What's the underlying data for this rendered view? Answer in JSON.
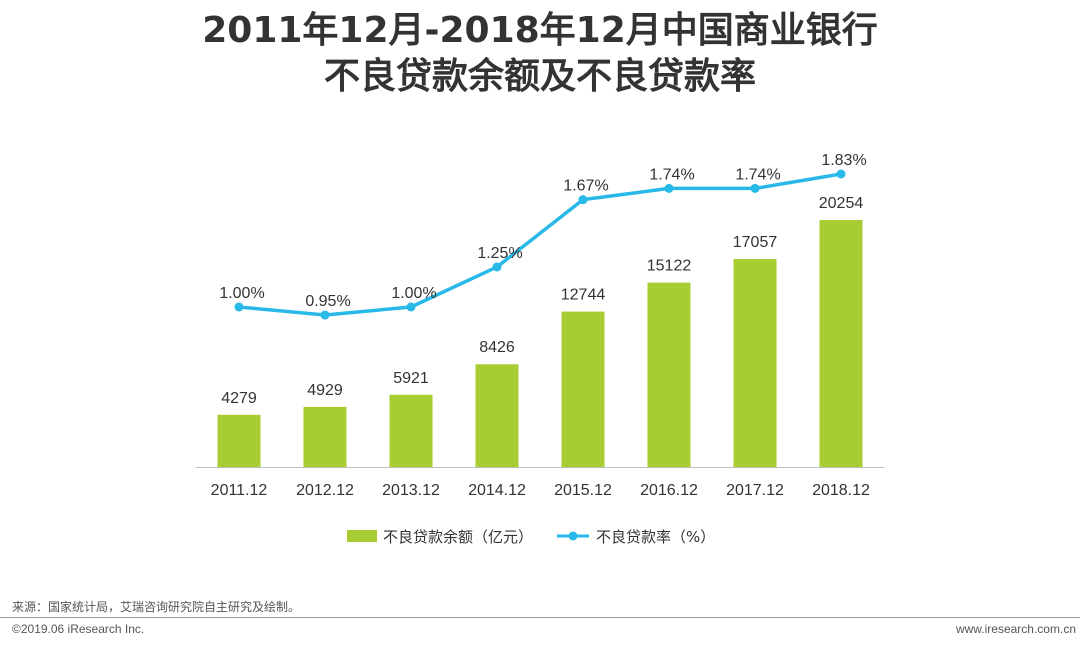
{
  "title": {
    "line1": "2011年12月-2018年12月中国商业银行",
    "line2": "不良贷款余额及不良贷款率"
  },
  "colors": {
    "bar": "#a8cd32",
    "line": "#29b9e8",
    "axis": "#bfbfbf",
    "text": "#333333"
  },
  "chart_data": {
    "type": "bar",
    "categories": [
      "2011.12",
      "2012.12",
      "2013.12",
      "2014.12",
      "2015.12",
      "2016.12",
      "2017.12",
      "2018.12"
    ],
    "series": [
      {
        "name": "不良贷款余额（亿元）",
        "type": "bar",
        "values": [
          4279,
          4929,
          5921,
          8426,
          12744,
          15122,
          17057,
          20254
        ],
        "labels": [
          "4279",
          "4929",
          "5921",
          "8426",
          "12744",
          "15122",
          "17057",
          "20254"
        ]
      },
      {
        "name": "不良贷款率（%）",
        "type": "line",
        "values": [
          1.0,
          0.95,
          1.0,
          1.25,
          1.67,
          1.74,
          1.74,
          1.83
        ],
        "labels": [
          "1.00%",
          "0.95%",
          "1.00%",
          "1.25%",
          "1.67%",
          "1.74%",
          "1.74%",
          "1.83%"
        ]
      }
    ],
    "legend": "bottom",
    "grid": false
  },
  "footer": {
    "source": "来源：国家统计局，艾瑞咨询研究院自主研究及绘制。",
    "copyright": "©2019.06 iResearch Inc.",
    "website": "www.iresearch.com.cn"
  }
}
